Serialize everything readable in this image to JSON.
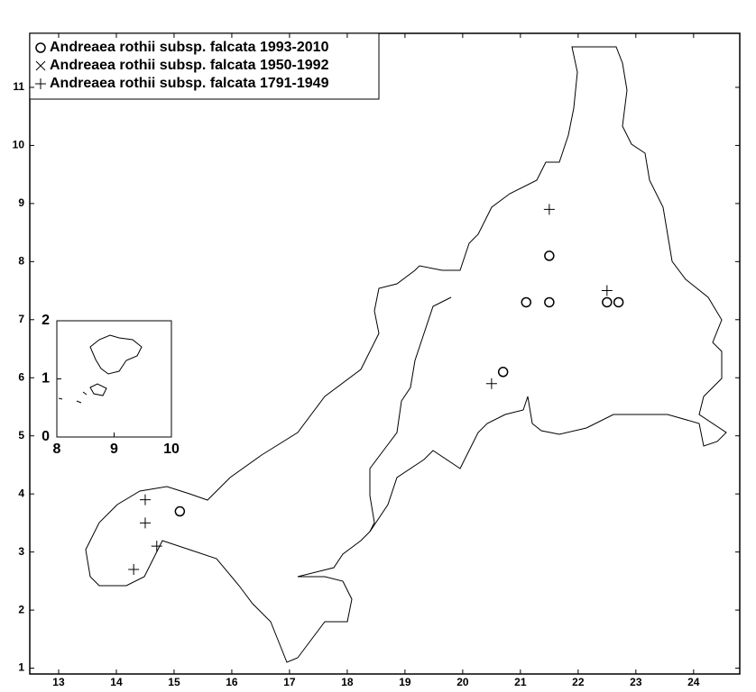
{
  "chart_data": [
    {
      "type": "scatter",
      "xlim": [
        12.5,
        24.8
      ],
      "ylim": [
        0.9,
        11.93
      ],
      "xticks": [
        13,
        14,
        15,
        16,
        17,
        18,
        19,
        20,
        21,
        22,
        23,
        24
      ],
      "yticks": [
        1,
        2,
        3,
        4,
        5,
        6,
        7,
        8,
        9,
        10,
        11
      ],
      "series": [
        {
          "name": "Andreaea rothii subsp. falcata 1993-2010",
          "marker": "circle",
          "color": "#000000",
          "x": [
            15.1,
            20.7,
            21.1,
            21.5,
            21.5,
            22.5,
            22.7
          ],
          "y": [
            3.7,
            6.1,
            7.3,
            7.3,
            8.1,
            7.3,
            7.3
          ]
        },
        {
          "name": "Andreaea rothii subsp. falcata 1950-1992",
          "marker": "x",
          "color": "#000000",
          "x": [],
          "y": []
        },
        {
          "name": "Andreaea rothii subsp. falcata 1791-1949",
          "marker": "plus",
          "color": "#000000",
          "x": [
            21.5,
            22.5,
            20.5,
            14.5,
            14.5,
            14.7,
            14.3
          ],
          "y": [
            8.9,
            7.5,
            5.9,
            3.9,
            3.5,
            3.1,
            2.7
          ]
        }
      ]
    },
    {
      "type": "inset",
      "xlim": [
        8,
        10
      ],
      "ylim": [
        0,
        2
      ],
      "xticks": [
        8,
        9,
        10
      ],
      "yticks": [
        0,
        1,
        2
      ]
    }
  ]
}
